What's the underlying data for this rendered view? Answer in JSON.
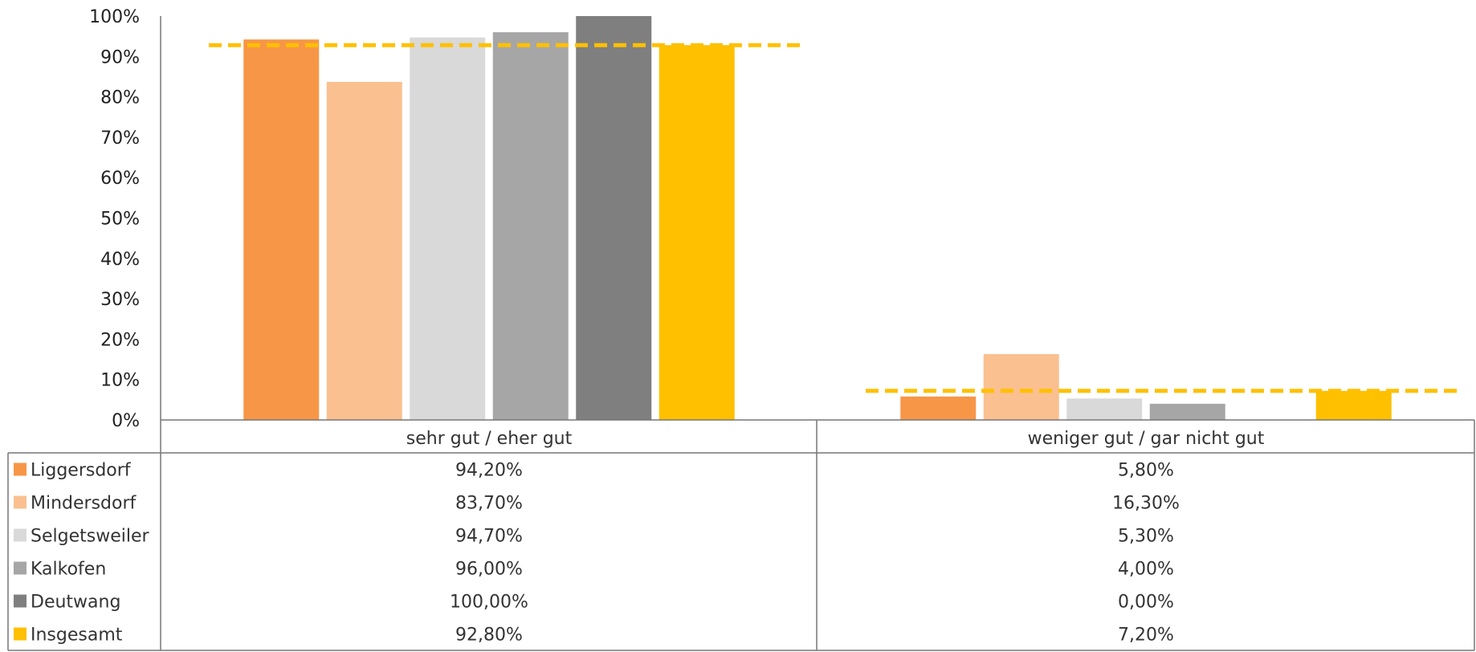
{
  "chart_data": {
    "type": "bar",
    "categories": [
      "sehr gut / eher gut",
      "weniger gut / gar nicht gut"
    ],
    "series": [
      {
        "name": "Liggersdorf",
        "values": [
          94.2,
          5.8
        ],
        "labels": [
          "94,20%",
          "5,80%"
        ],
        "color": "#F79646"
      },
      {
        "name": "Mindersdorf",
        "values": [
          83.7,
          16.3
        ],
        "labels": [
          "83,70%",
          "16,30%"
        ],
        "color": "#FAC090"
      },
      {
        "name": "Selgetsweiler",
        "values": [
          94.7,
          5.3
        ],
        "labels": [
          "94,70%",
          "5,30%"
        ],
        "color": "#D9D9D9"
      },
      {
        "name": "Kalkofen",
        "values": [
          96.0,
          4.0
        ],
        "labels": [
          "96,00%",
          "4,00%"
        ],
        "color": "#A6A6A6"
      },
      {
        "name": "Deutwang",
        "values": [
          100.0,
          0.0
        ],
        "labels": [
          "100,00%",
          "0,00%"
        ],
        "color": "#7F7F7F"
      },
      {
        "name": "Insgesamt",
        "values": [
          92.8,
          7.2
        ],
        "labels": [
          "92,80%",
          "7,20%"
        ],
        "color": "#FFC000"
      }
    ],
    "reference_lines": [
      92.8,
      7.2
    ],
    "reference_line_color": "#FFC000",
    "ylim": [
      0,
      100
    ],
    "yticks": [
      "0%",
      "10%",
      "20%",
      "30%",
      "40%",
      "50%",
      "60%",
      "70%",
      "80%",
      "90%",
      "100%"
    ],
    "data_table": true,
    "grid": false
  }
}
